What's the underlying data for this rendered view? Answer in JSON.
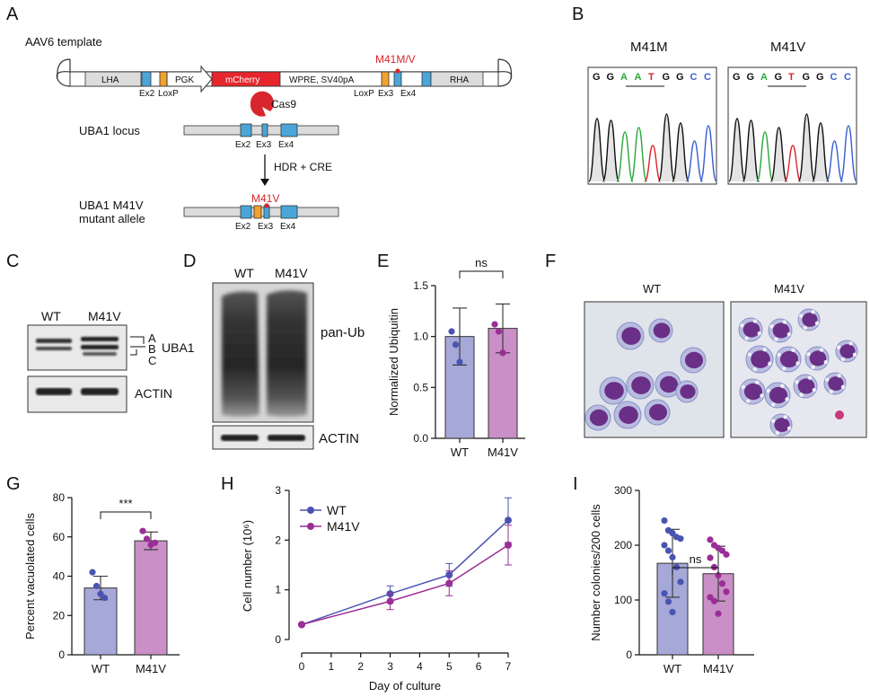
{
  "panels": {
    "A": "A",
    "B": "B",
    "C": "C",
    "D": "D",
    "E": "E",
    "F": "F",
    "G": "G",
    "H": "H",
    "I": "I"
  },
  "panelA": {
    "template_title": "AAV6 template",
    "lha": "LHA",
    "pgk": "PGK",
    "mcherry": "mCherry",
    "wpre": "WPRE, SV40pA",
    "rha": "RHA",
    "mutation": "M41M/V",
    "ex2": "Ex2",
    "loxp": "LoxP",
    "loxp2": "LoxP",
    "ex3": "Ex3",
    "ex4": "Ex4",
    "cas9": "Cas9",
    "locus": "UBA1 locus",
    "hdr": "HDR + CRE",
    "mut_allele_1": "UBA1 M41V",
    "mut_allele_2": "mutant allele",
    "m41v": "M41V"
  },
  "panelB": {
    "left_title": "M41M",
    "right_title": "M41V",
    "left_seq": [
      "G",
      "G",
      "A",
      "A",
      "T",
      "G",
      "G",
      "C",
      "C"
    ],
    "right_seq": [
      "G",
      "G",
      "A",
      "G",
      "T",
      "G",
      "G",
      "C",
      "C"
    ],
    "base_colors": {
      "G": "#111111",
      "A": "#2aa83a",
      "T": "#d9262c",
      "C": "#3a5fd0"
    }
  },
  "panelC": {
    "wt": "WT",
    "m41v": "M41V",
    "a": "A",
    "b": "B",
    "c": "C",
    "uba1": "UBA1",
    "actin": "ACTIN"
  },
  "panelD": {
    "wt": "WT",
    "m41v": "M41V",
    "panub": "pan-Ub",
    "actin": "ACTIN"
  },
  "panelF": {
    "wt": "WT",
    "m41v": "M41V"
  },
  "colors": {
    "wt_fill": "#a6a8d8",
    "wt_stroke": "#4a54b0",
    "mut_fill": "#c98fc6",
    "mut_stroke": "#9a2e96"
  },
  "chart_data": [
    {
      "id": "E",
      "type": "bar",
      "categories": [
        "WT",
        "M41V"
      ],
      "values": [
        1.0,
        1.08
      ],
      "errors": [
        0.28,
        0.24
      ],
      "points": [
        [
          1.05,
          0.92,
          0.75
        ],
        [
          1.12,
          1.05,
          0.84
        ]
      ],
      "ylabel": "Normalized Ubiquitin",
      "ylim": [
        0,
        1.5
      ],
      "yticks": [
        "0.0",
        "0.5",
        "1.0",
        "1.5"
      ],
      "significance": "ns"
    },
    {
      "id": "G",
      "type": "bar",
      "categories": [
        "WT",
        "M41V"
      ],
      "values": [
        34,
        58
      ],
      "errors": [
        6,
        4.5
      ],
      "points": [
        [
          42,
          35,
          31,
          29
        ],
        [
          63,
          59,
          56,
          57
        ]
      ],
      "ylabel": "Percent vacuolated cells",
      "ylim": [
        0,
        80
      ],
      "yticks": [
        "0",
        "20",
        "40",
        "60",
        "80"
      ],
      "significance": "***"
    },
    {
      "id": "H",
      "type": "line",
      "x": [
        0,
        3,
        5,
        7
      ],
      "series": [
        {
          "name": "WT",
          "values": [
            0.3,
            0.92,
            1.3,
            2.4
          ],
          "errors": [
            0.02,
            0.16,
            0.23,
            0.45
          ]
        },
        {
          "name": "M41V",
          "values": [
            0.3,
            0.77,
            1.13,
            1.9
          ],
          "errors": [
            0.02,
            0.17,
            0.25,
            0.4
          ]
        }
      ],
      "xlabel": "Day of culture",
      "ylabel": "Cell number (10⁶)",
      "xlim": [
        0,
        7
      ],
      "ylim": [
        0,
        3
      ],
      "xticks": [
        "0",
        "1",
        "2",
        "3",
        "4",
        "5",
        "6",
        "7"
      ],
      "yticks": [
        "0",
        "1",
        "2",
        "3"
      ],
      "legend": "top-left"
    },
    {
      "id": "I",
      "type": "bar",
      "categories": [
        "WT",
        "M41V"
      ],
      "values": [
        167,
        148
      ],
      "errors": [
        62,
        50
      ],
      "points": [
        [
          245,
          227,
          222,
          215,
          212,
          200,
          190,
          178,
          160,
          133,
          112,
          97,
          78
        ],
        [
          210,
          200,
          195,
          190,
          183,
          177,
          160,
          145,
          130,
          115,
          105,
          98,
          75
        ]
      ],
      "ylabel": "Number colonies/200 cells",
      "ylim": [
        0,
        300
      ],
      "yticks": [
        "0",
        "100",
        "200",
        "300"
      ],
      "significance": "ns"
    }
  ]
}
